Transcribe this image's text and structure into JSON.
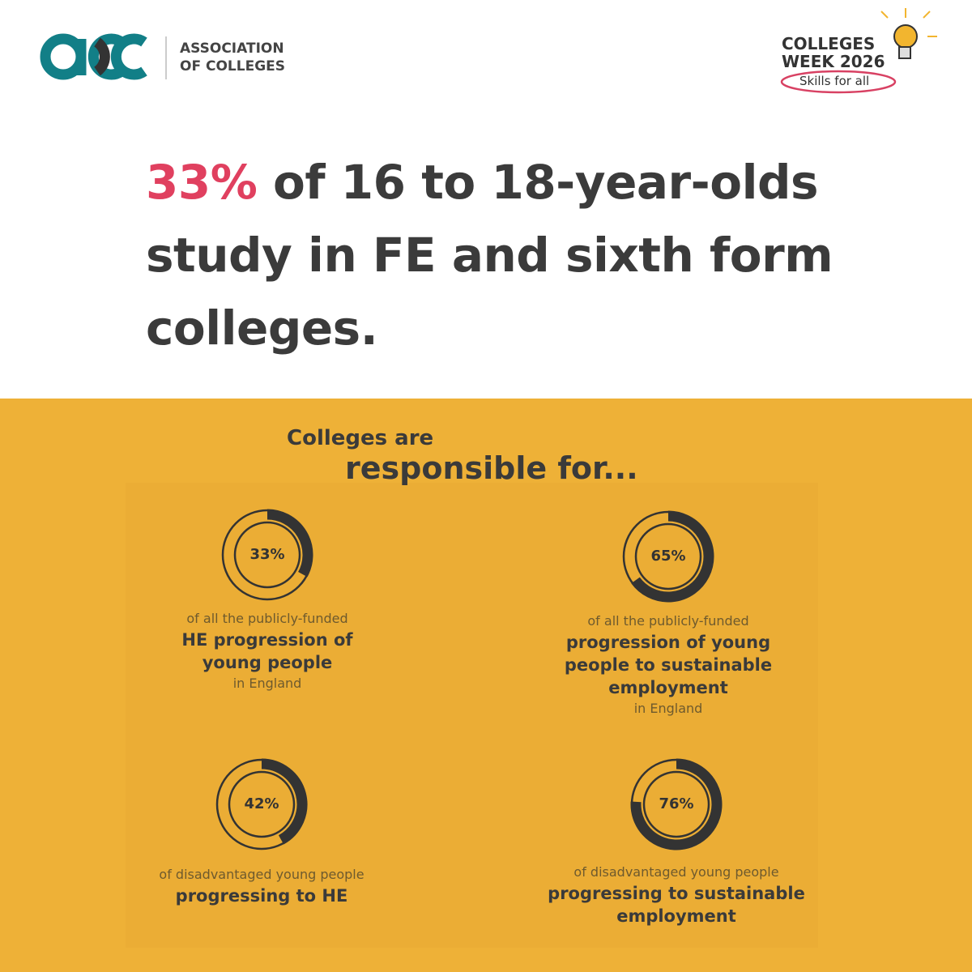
{
  "logo": {
    "line1": "ASSOCIATION",
    "line2": "OF COLLEGES"
  },
  "event": {
    "line1": "COLLEGES",
    "line2": "WEEK 2026",
    "tagline": "Skills for all"
  },
  "headline": {
    "highlight": "33%",
    "text": "of 16 to 18-year-olds study in FE and sixth form colleges."
  },
  "section": {
    "intro": "Colleges are",
    "heading": "responsible for..."
  },
  "stats": [
    {
      "value": 33,
      "value_label": "33%",
      "pre": "of all the publicly-funded",
      "main": "HE progression of young people",
      "post": "in England"
    },
    {
      "value": 65,
      "value_label": "65%",
      "pre": "of all the publicly-funded",
      "main": "progression of young people to sustainable employment",
      "post": "in England"
    },
    {
      "value": 42,
      "value_label": "42%",
      "pre": "of disadvantaged young people",
      "main": "progressing to HE"
    },
    {
      "value": 76,
      "value_label": "76%",
      "pre": "of disadvantaged young people",
      "main": "progressing to sustainable employment"
    }
  ]
}
